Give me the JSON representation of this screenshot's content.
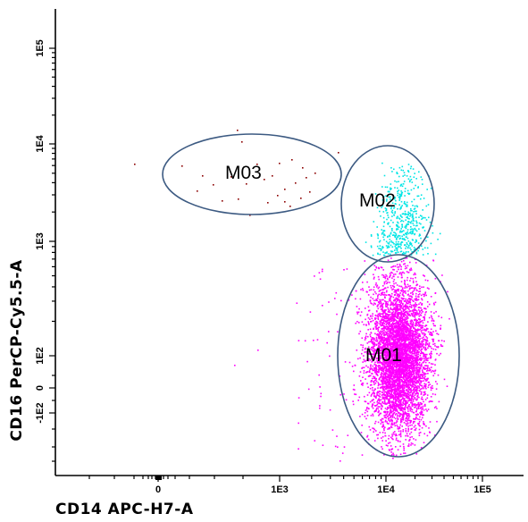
{
  "chart_data": {
    "type": "scatter",
    "title": "",
    "xlabel": "CD14 APC-H7-A",
    "ylabel": "CD16 PerCP-Cy5.5-A",
    "x_scale": "biexponential",
    "y_scale": "biexponential",
    "x_ticks": [
      "0",
      "1E3",
      "1E4",
      "1E5"
    ],
    "y_ticks": [
      "-1E2",
      "0",
      "1E2",
      "1E3",
      "1E4",
      "1E5"
    ],
    "xlim": [
      -300,
      200000
    ],
    "ylim": [
      -250,
      200000
    ],
    "grid": false,
    "legend": "none",
    "populations": [
      {
        "name": "M01",
        "color": "#ff00ff",
        "x_center": 13000,
        "y_center": 120,
        "x_range": [
          3000,
          40000
        ],
        "y_range": [
          -250,
          700
        ],
        "events": "dense"
      },
      {
        "name": "M02",
        "color": "#00e5e5",
        "x_center": 13000,
        "y_center": 1500,
        "x_range": [
          5000,
          25000
        ],
        "y_range": [
          700,
          6000
        ],
        "events": "moderate"
      },
      {
        "name": "M03",
        "color": "#8b0000",
        "x_center": 900,
        "y_center": 5000,
        "x_range": [
          -200,
          4000
        ],
        "y_range": [
          2500,
          12000
        ],
        "events": "sparse"
      }
    ],
    "gates": [
      {
        "label": "M01",
        "shape": "ellipse"
      },
      {
        "label": "M02",
        "shape": "ellipse"
      },
      {
        "label": "M03",
        "shape": "ellipse"
      }
    ]
  },
  "colors": {
    "M01": "#ff00ff",
    "M02": "#00e5e5",
    "M03": "#8b0000",
    "gate_outline": "#3c5a82"
  }
}
